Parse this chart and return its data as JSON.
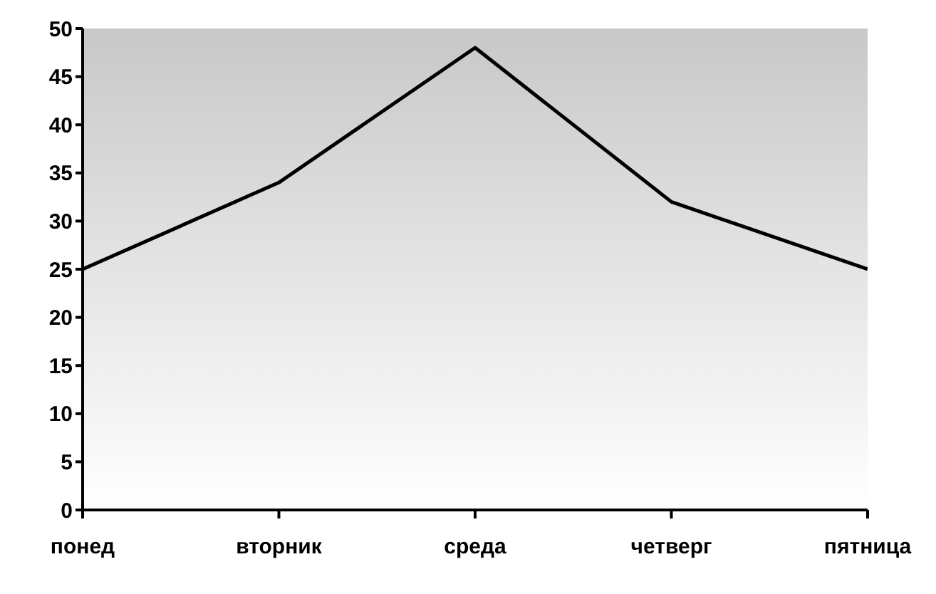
{
  "chart_data": {
    "type": "line",
    "categories": [
      "понед",
      "вторник",
      "среда",
      "четверг",
      "пятница"
    ],
    "series": [
      {
        "color": "#000000",
        "values": [
          25,
          34,
          48,
          32,
          25
        ]
      }
    ],
    "ylim": [
      0,
      50
    ],
    "yticks": [
      0,
      5,
      10,
      15,
      20,
      25,
      30,
      35,
      40,
      45,
      50
    ],
    "marker": "none",
    "line_style": "solid"
  }
}
